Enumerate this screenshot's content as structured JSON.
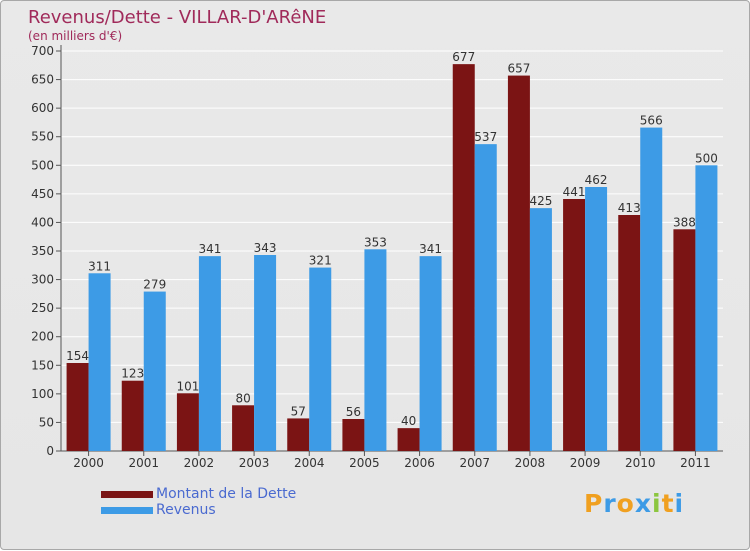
{
  "title": "Revenus/Dette - VILLAR-D'ARêNE",
  "subtitle": "(en milliers d'€)",
  "logo": "Proxiti",
  "colors": {
    "dette": "#7b1414",
    "revenus": "#3d9be6",
    "title": "#a02a5a",
    "legend_text": "#4a6ad0"
  },
  "legend": [
    {
      "label": "Montant de la Dette",
      "color": "#7b1414"
    },
    {
      "label": "Revenus",
      "color": "#3d9be6"
    }
  ],
  "chart_data": {
    "type": "bar",
    "title": "Revenus/Dette - VILLAR-D'ARêNE",
    "subtitle": "(en milliers d'€)",
    "categories": [
      "2000",
      "2001",
      "2002",
      "2003",
      "2004",
      "2005",
      "2006",
      "2007",
      "2008",
      "2009",
      "2010",
      "2011"
    ],
    "series": [
      {
        "name": "Montant de la Dette",
        "color": "#7b1414",
        "values": [
          154,
          123,
          101,
          80,
          57,
          56,
          40,
          677,
          657,
          441,
          413,
          388
        ]
      },
      {
        "name": "Revenus",
        "color": "#3d9be6",
        "values": [
          311,
          279,
          341,
          343,
          321,
          353,
          341,
          537,
          425,
          462,
          566,
          500
        ]
      }
    ],
    "yticks": [
      0,
      50,
      100,
      150,
      200,
      250,
      300,
      350,
      400,
      450,
      500,
      550,
      600,
      650,
      700
    ],
    "ylim": [
      0,
      700
    ],
    "grid": true,
    "legend_position": "bottom-left"
  }
}
